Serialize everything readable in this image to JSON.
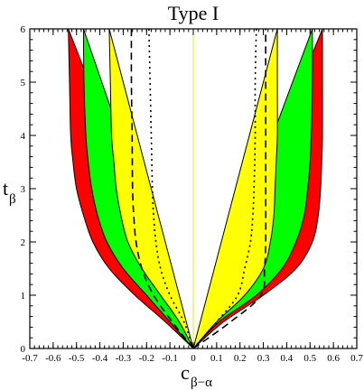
{
  "chart_data": {
    "type": "area",
    "title": "Type I",
    "xlabel": {
      "main": "c",
      "sub": "β−α"
    },
    "ylabel": {
      "main": "t",
      "sub": "β"
    },
    "xlim": [
      -0.7,
      0.7
    ],
    "ylim": [
      0,
      6
    ],
    "x_ticks": [
      "-0.7",
      "-0.6",
      "-0.5",
      "-0.4",
      "-0.3",
      "-0.2",
      "-0.1",
      "0",
      "0.1",
      "0.2",
      "0.3",
      "0.4",
      "0.5",
      "0.6",
      "0.7"
    ],
    "y_ticks": [
      "0",
      "1",
      "2",
      "3",
      "4",
      "5",
      "6"
    ],
    "grid": false,
    "colors": {
      "red": "#ff0000",
      "green": "#00ff00",
      "yellow": "#ffff00",
      "outline": "#000000",
      "center_line": "#e8e800"
    },
    "regions": [
      {
        "color": "red",
        "left": [
          [
            0.0,
            0.0
          ],
          [
            -0.12,
            0.5
          ],
          [
            -0.25,
            1.0
          ],
          [
            -0.36,
            1.5
          ],
          [
            -0.43,
            2.0
          ],
          [
            -0.47,
            2.5
          ],
          [
            -0.5,
            3.0
          ],
          [
            -0.515,
            3.5
          ],
          [
            -0.525,
            4.0
          ],
          [
            -0.53,
            5.0
          ],
          [
            -0.535,
            6.0
          ]
        ],
        "right": [
          [
            0.0,
            0.0
          ],
          [
            0.13,
            0.5
          ],
          [
            0.3,
            1.0
          ],
          [
            0.44,
            1.5
          ],
          [
            0.51,
            2.0
          ],
          [
            0.535,
            2.5
          ],
          [
            0.545,
            3.0
          ],
          [
            0.55,
            3.5
          ],
          [
            0.553,
            4.0
          ],
          [
            0.553,
            5.0
          ],
          [
            0.553,
            6.0
          ]
        ]
      },
      {
        "color": "green",
        "left": [
          [
            0.0,
            0.0
          ],
          [
            -0.1,
            0.5
          ],
          [
            -0.2,
            1.0
          ],
          [
            -0.3,
            1.5
          ],
          [
            -0.37,
            2.0
          ],
          [
            -0.41,
            2.5
          ],
          [
            -0.435,
            3.0
          ],
          [
            -0.45,
            3.5
          ],
          [
            -0.46,
            4.0
          ],
          [
            -0.468,
            5.0
          ],
          [
            -0.47,
            6.0
          ]
        ],
        "right": [
          [
            0.0,
            0.0
          ],
          [
            0.11,
            0.5
          ],
          [
            0.27,
            1.0
          ],
          [
            0.38,
            1.5
          ],
          [
            0.44,
            2.0
          ],
          [
            0.475,
            2.5
          ],
          [
            0.49,
            3.0
          ],
          [
            0.5,
            3.5
          ],
          [
            0.505,
            4.0
          ],
          [
            0.51,
            5.0
          ],
          [
            0.51,
            6.0
          ]
        ]
      },
      {
        "color": "yellow",
        "left": [
          [
            0.0,
            0.0
          ],
          [
            -0.06,
            0.5
          ],
          [
            -0.14,
            1.0
          ],
          [
            -0.22,
            1.5
          ],
          [
            -0.28,
            2.0
          ],
          [
            -0.31,
            2.5
          ],
          [
            -0.33,
            3.0
          ],
          [
            -0.34,
            3.5
          ],
          [
            -0.35,
            4.0
          ],
          [
            -0.355,
            5.0
          ],
          [
            -0.36,
            6.0
          ]
        ],
        "right": [
          [
            0.0,
            0.0
          ],
          [
            0.1,
            0.5
          ],
          [
            0.22,
            1.0
          ],
          [
            0.3,
            1.5
          ],
          [
            0.33,
            2.0
          ],
          [
            0.345,
            2.5
          ],
          [
            0.35,
            3.0
          ],
          [
            0.355,
            3.5
          ],
          [
            0.36,
            4.0
          ],
          [
            0.36,
            5.0
          ],
          [
            0.36,
            6.0
          ]
        ]
      }
    ],
    "lines": [
      {
        "style": "dashed",
        "left": [
          [
            0.0,
            0.0
          ],
          [
            -0.09,
            0.5
          ],
          [
            -0.17,
            1.0
          ],
          [
            -0.22,
            1.5
          ],
          [
            -0.245,
            2.0
          ],
          [
            -0.255,
            2.5
          ],
          [
            -0.26,
            3.0
          ],
          [
            -0.262,
            4.0
          ],
          [
            -0.265,
            5.0
          ],
          [
            -0.265,
            6.0
          ]
        ],
        "right": [
          [
            0.0,
            0.0
          ],
          [
            0.16,
            0.5
          ],
          [
            0.29,
            1.0
          ],
          [
            0.305,
            1.5
          ],
          [
            0.31,
            2.0
          ],
          [
            0.31,
            3.0
          ],
          [
            0.31,
            4.0
          ],
          [
            0.31,
            5.0
          ],
          [
            0.31,
            6.0
          ]
        ]
      },
      {
        "style": "dotted",
        "left": [
          [
            0.0,
            0.0
          ],
          [
            -0.04,
            0.5
          ],
          [
            -0.1,
            1.0
          ],
          [
            -0.14,
            1.5
          ],
          [
            -0.16,
            2.0
          ],
          [
            -0.17,
            2.5
          ],
          [
            -0.175,
            3.0
          ],
          [
            -0.18,
            4.0
          ],
          [
            -0.185,
            5.0
          ],
          [
            -0.19,
            6.0
          ]
        ],
        "right": [
          [
            0.0,
            0.0
          ],
          [
            0.1,
            0.5
          ],
          [
            0.19,
            1.0
          ],
          [
            0.22,
            1.5
          ],
          [
            0.245,
            2.0
          ],
          [
            0.255,
            2.5
          ],
          [
            0.26,
            3.0
          ],
          [
            0.265,
            4.0
          ],
          [
            0.265,
            5.0
          ],
          [
            0.27,
            6.0
          ]
        ]
      }
    ]
  }
}
